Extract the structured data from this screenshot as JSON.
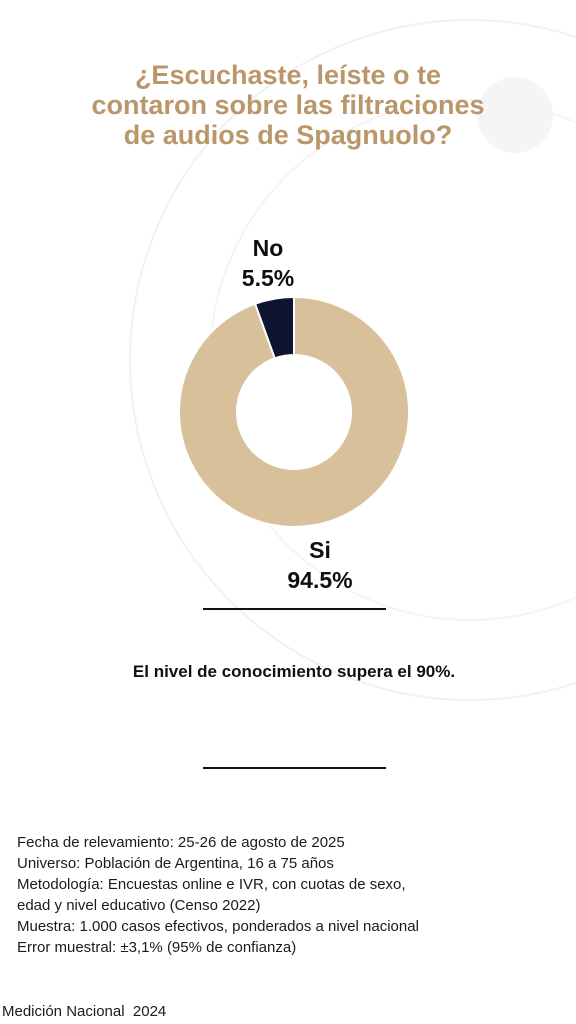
{
  "title": "¿Escuchaste, leíste o te contaron sobre las filtraciones de audios de Spagnuolo?",
  "colors": {
    "accent": "#b9976b",
    "si": "#d8c09a",
    "no": "#0d1432"
  },
  "chart_data": {
    "type": "pie",
    "donut": true,
    "title": "¿Escuchaste, leíste o te contaron sobre las filtraciones de audios de Spagnuolo?",
    "slices": [
      {
        "label": "No",
        "value": 5.5,
        "value_label": "5.5%",
        "color": "#0d1432"
      },
      {
        "label": "Si",
        "value": 94.5,
        "value_label": "94.5%",
        "color": "#d8c09a"
      }
    ]
  },
  "insight": "El nivel de conocimiento supera el 90%.",
  "methodology": [
    "Fecha de relevamiento: 25-26 de agosto de 2025",
    "Universo: Población de Argentina, 16 a 75 años",
    "Metodología: Encuestas online e IVR, con cuotas de sexo,",
    "edad y nivel educativo (Censo 2022)",
    "Muestra: 1.000 casos efectivos, ponderados a nivel nacional",
    "Error muestral: ±3,1% (95% de confianza)"
  ],
  "footer": "Medición Nacional  2024"
}
